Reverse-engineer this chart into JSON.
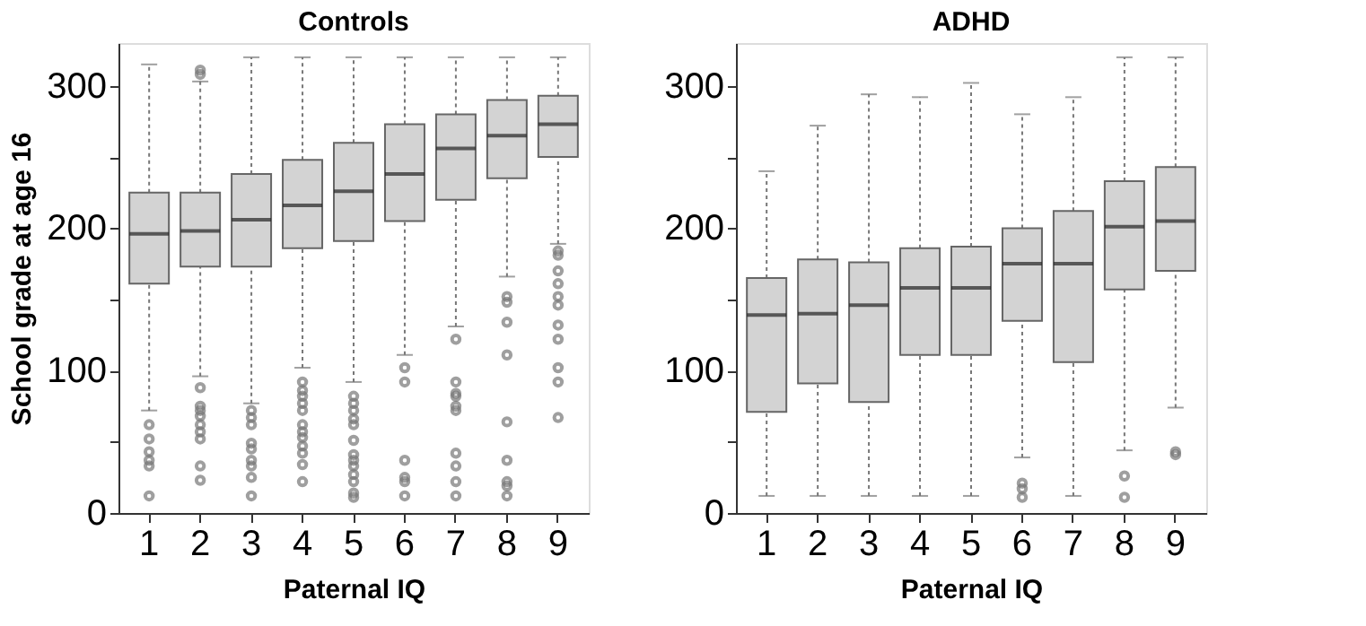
{
  "chart_data": [
    {
      "type": "box",
      "title": "Controls",
      "xlabel": "Paternal IQ",
      "ylabel": "School grade at age 16",
      "color": "#d3d3d3",
      "categories": [
        "1",
        "2",
        "3",
        "4",
        "5",
        "6",
        "7",
        "8",
        "9"
      ],
      "ylim": [
        0,
        330
      ],
      "yticks": [
        0,
        {
          "value": 50,
          "label": null
        },
        100,
        {
          "value": 150,
          "label": null
        },
        200,
        {
          "value": 250,
          "label": null
        },
        300
      ],
      "boxes": [
        {
          "low": 72,
          "q1": 161,
          "median": 196,
          "q3": 225,
          "high": 315,
          "outliers": [
            62,
            52,
            43,
            37,
            33,
            12
          ]
        },
        {
          "low": 96,
          "q1": 173,
          "median": 198,
          "q3": 225,
          "high": 303,
          "outliers": [
            311,
            308,
            88,
            75,
            72,
            68,
            62,
            57,
            52,
            33,
            23
          ]
        },
        {
          "low": 77,
          "q1": 173,
          "median": 206,
          "q3": 238,
          "high": 320,
          "outliers": [
            72,
            67,
            62,
            49,
            45,
            37,
            33,
            25,
            12
          ]
        },
        {
          "low": 102,
          "q1": 186,
          "median": 216,
          "q3": 248,
          "high": 320,
          "outliers": [
            92,
            86,
            82,
            77,
            72,
            62,
            57,
            53,
            47,
            42,
            34,
            22
          ]
        },
        {
          "low": 92,
          "q1": 191,
          "median": 226,
          "q3": 260,
          "high": 320,
          "outliers": [
            82,
            77,
            72,
            66,
            62,
            51,
            41,
            37,
            33,
            27,
            22,
            14,
            11
          ]
        },
        {
          "low": 111,
          "q1": 205,
          "median": 238,
          "q3": 273,
          "high": 320,
          "outliers": [
            102,
            92,
            37,
            25,
            22,
            12
          ]
        },
        {
          "low": 131,
          "q1": 220,
          "median": 256,
          "q3": 280,
          "high": 320,
          "outliers": [
            122,
            92,
            84,
            82,
            75,
            72,
            42,
            33,
            22,
            12
          ]
        },
        {
          "low": 166,
          "q1": 235,
          "median": 265,
          "q3": 290,
          "high": 320,
          "outliers": [
            152,
            148,
            134,
            111,
            64,
            37,
            22,
            19,
            12
          ]
        },
        {
          "low": 189,
          "q1": 250,
          "median": 273,
          "q3": 293,
          "high": 320,
          "outliers": [
            184,
            181,
            170,
            161,
            152,
            146,
            132,
            122,
            102,
            92,
            67
          ]
        }
      ]
    },
    {
      "type": "box",
      "title": "ADHD",
      "xlabel": "Paternal IQ",
      "color": "#d3d3d3",
      "categories": [
        "1",
        "2",
        "3",
        "4",
        "5",
        "6",
        "7",
        "8",
        "9"
      ],
      "ylim": [
        0,
        330
      ],
      "yticks": [
        0,
        {
          "value": 50,
          "label": null
        },
        100,
        {
          "value": 150,
          "label": null
        },
        200,
        {
          "value": 250,
          "label": null
        },
        300
      ],
      "boxes": [
        {
          "low": 12,
          "q1": 71,
          "median": 139,
          "q3": 165,
          "high": 240
        },
        {
          "low": 12,
          "q1": 91,
          "median": 140,
          "q3": 178,
          "high": 272
        },
        {
          "low": 12,
          "q1": 78,
          "median": 146,
          "q3": 176,
          "high": 294
        },
        {
          "low": 12,
          "q1": 111,
          "median": 158,
          "q3": 186,
          "high": 292
        },
        {
          "low": 12,
          "q1": 111,
          "median": 158,
          "q3": 187,
          "high": 302
        },
        {
          "low": 39,
          "q1": 135,
          "median": 175,
          "q3": 200,
          "high": 280,
          "outliers": [
            21,
            17,
            11
          ]
        },
        {
          "low": 12,
          "q1": 106,
          "median": 175,
          "q3": 212,
          "high": 292
        },
        {
          "low": 44,
          "q1": 157,
          "median": 201,
          "q3": 233,
          "high": 320,
          "outliers": [
            26,
            11
          ]
        },
        {
          "low": 74,
          "q1": 170,
          "median": 205,
          "q3": 243,
          "high": 320,
          "outliers": [
            43,
            41
          ]
        }
      ]
    }
  ]
}
